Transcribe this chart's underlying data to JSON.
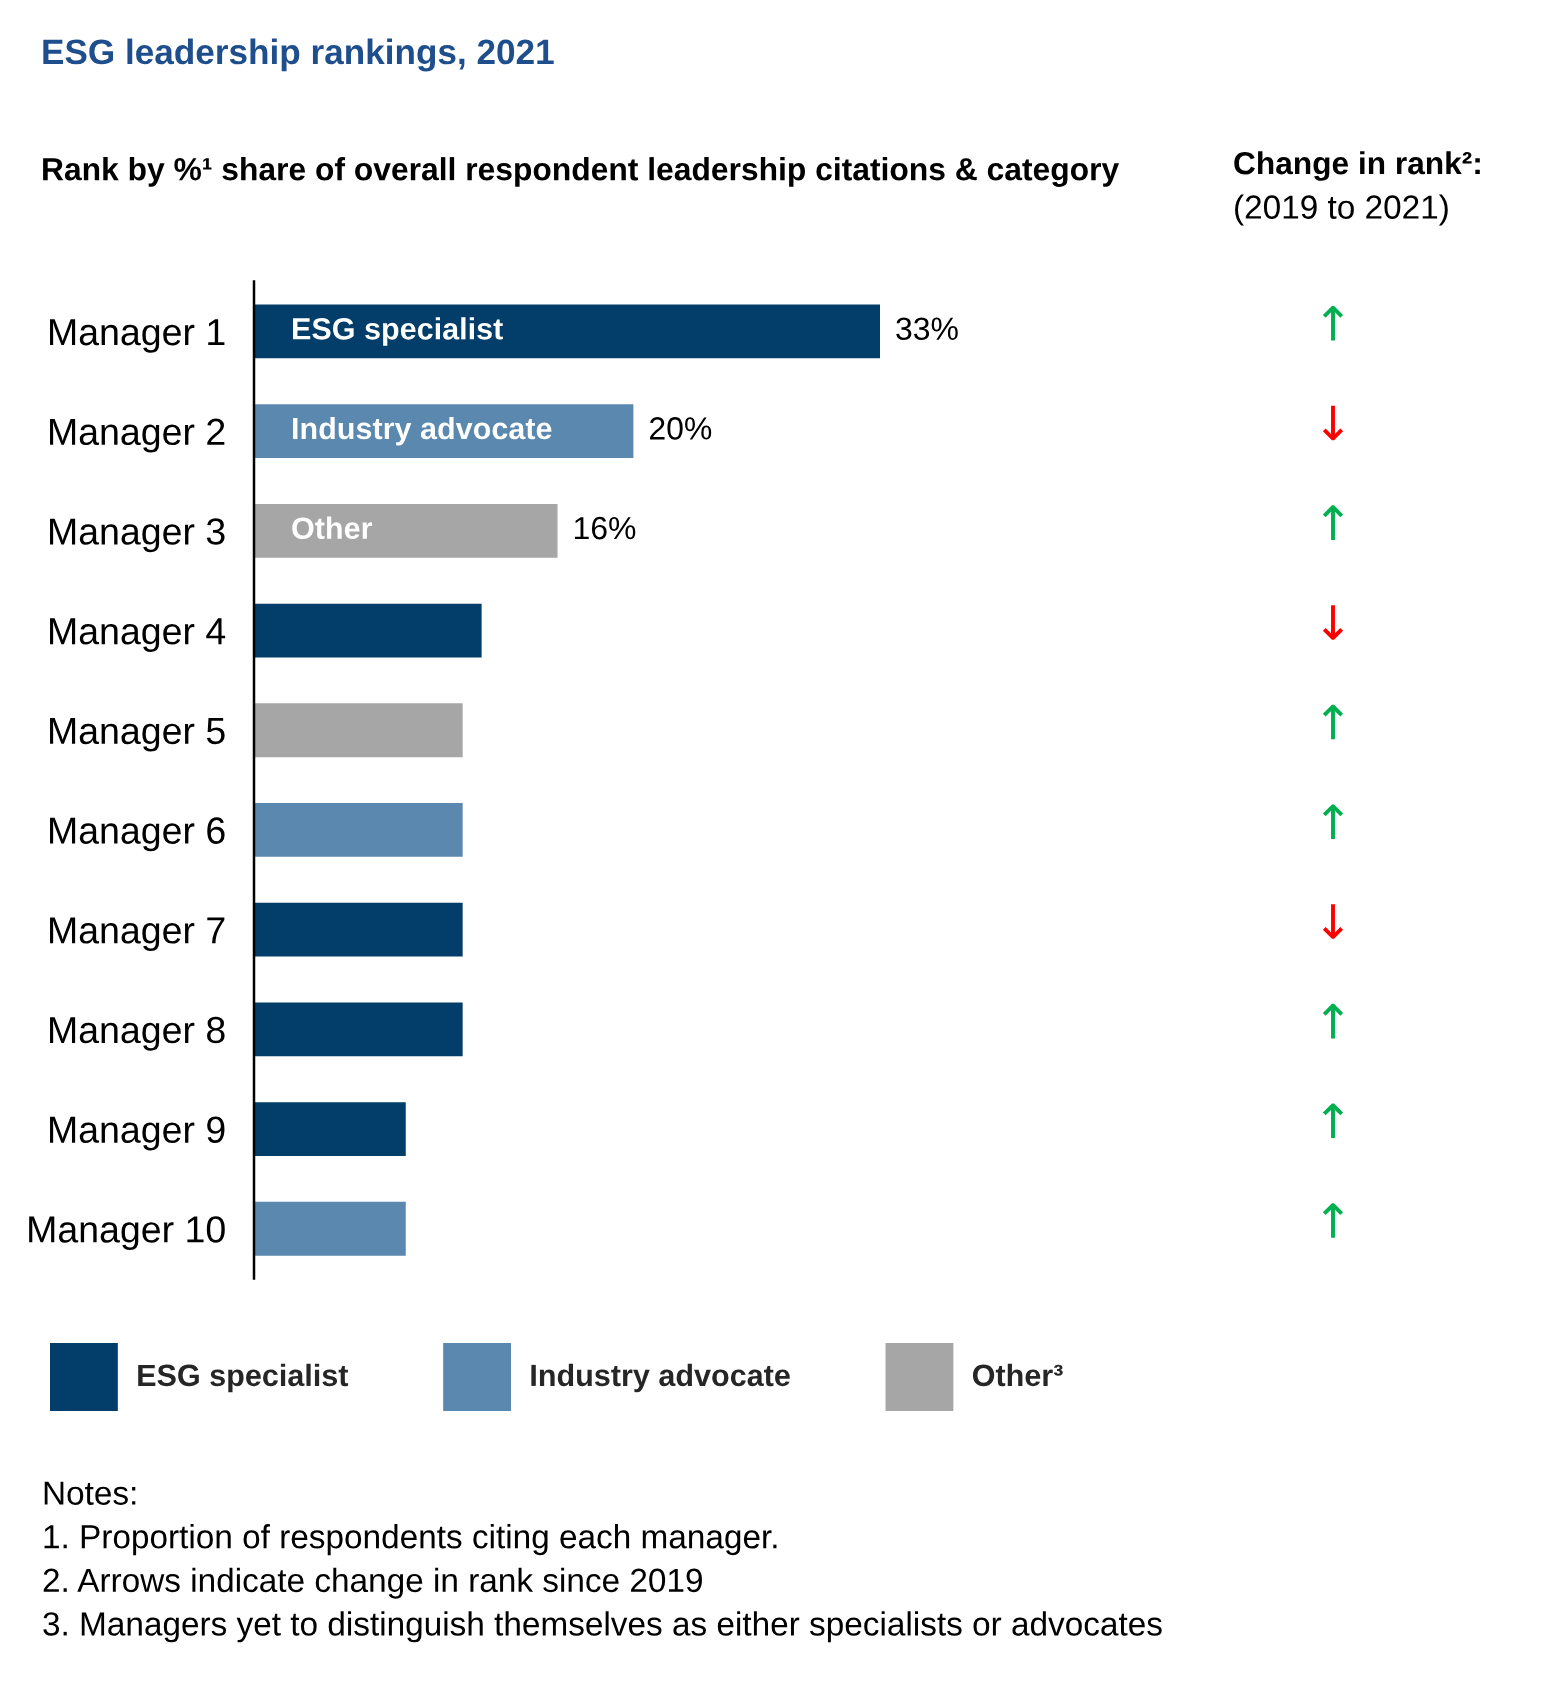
{
  "chart_data": [
    {
      "type": "bar",
      "orientation": "horizontal",
      "stacked": true,
      "title": "ESG leadership rankings, 2021",
      "subtitle": "Rank by %¹ share of overall respondent leadership citations & category",
      "categories": [
        "Manager 1",
        "Manager 2",
        "Manager 3",
        "Manager 4",
        "Manager 5",
        "Manager 6",
        "Manager 7",
        "Manager 8",
        "Manager 9",
        "Manager 10"
      ],
      "series": [
        {
          "name": "ESG specialist",
          "color": "#023e69",
          "values": [
            33,
            null,
            null,
            12,
            null,
            null,
            11,
            11,
            8,
            null
          ],
          "value_labels": [
            "33%",
            null,
            null,
            null,
            null,
            null,
            null,
            null,
            null,
            null
          ]
        },
        {
          "name": "Industry advocate",
          "color": "#5a88ae",
          "values": [
            null,
            20,
            null,
            null,
            null,
            11,
            null,
            null,
            null,
            8
          ],
          "value_labels": [
            null,
            "20%",
            null,
            null,
            null,
            null,
            null,
            null,
            null,
            null
          ]
        },
        {
          "name": "Other³",
          "color": "#a6a6a6",
          "values": [
            null,
            null,
            16,
            null,
            11,
            null,
            null,
            null,
            null,
            null
          ],
          "value_labels": [
            null,
            null,
            "16%",
            null,
            null,
            null,
            null,
            null,
            null,
            null
          ]
        }
      ],
      "legend": "bottom",
      "tick_labels": "y",
      "annotations": [
        "ESG specialist",
        "Industry advocate",
        "Other",
        "Notes:",
        "1. Proportion of respondents citing each manager.",
        "2. Arrows indicate change in rank since 2019",
        "3. Managers yet to distinguish themselves as either specialists or advocates"
      ]
    },
    {
      "type": "other",
      "title": "Change in rank²:",
      "subtitle": "(2019 to 2021)",
      "annotations": [
        "↑",
        "↓",
        "↑",
        "↓",
        "↑",
        "↑",
        "↓",
        "↑",
        "↑",
        "↑"
      ],
      "colors": [
        "#00b050",
        "#ff0000",
        "#00b050",
        "#ff0000",
        "#00b050",
        "#00b050",
        "#ff0000",
        "#00b050",
        "#00b050",
        "#00b050"
      ]
    }
  ]
}
